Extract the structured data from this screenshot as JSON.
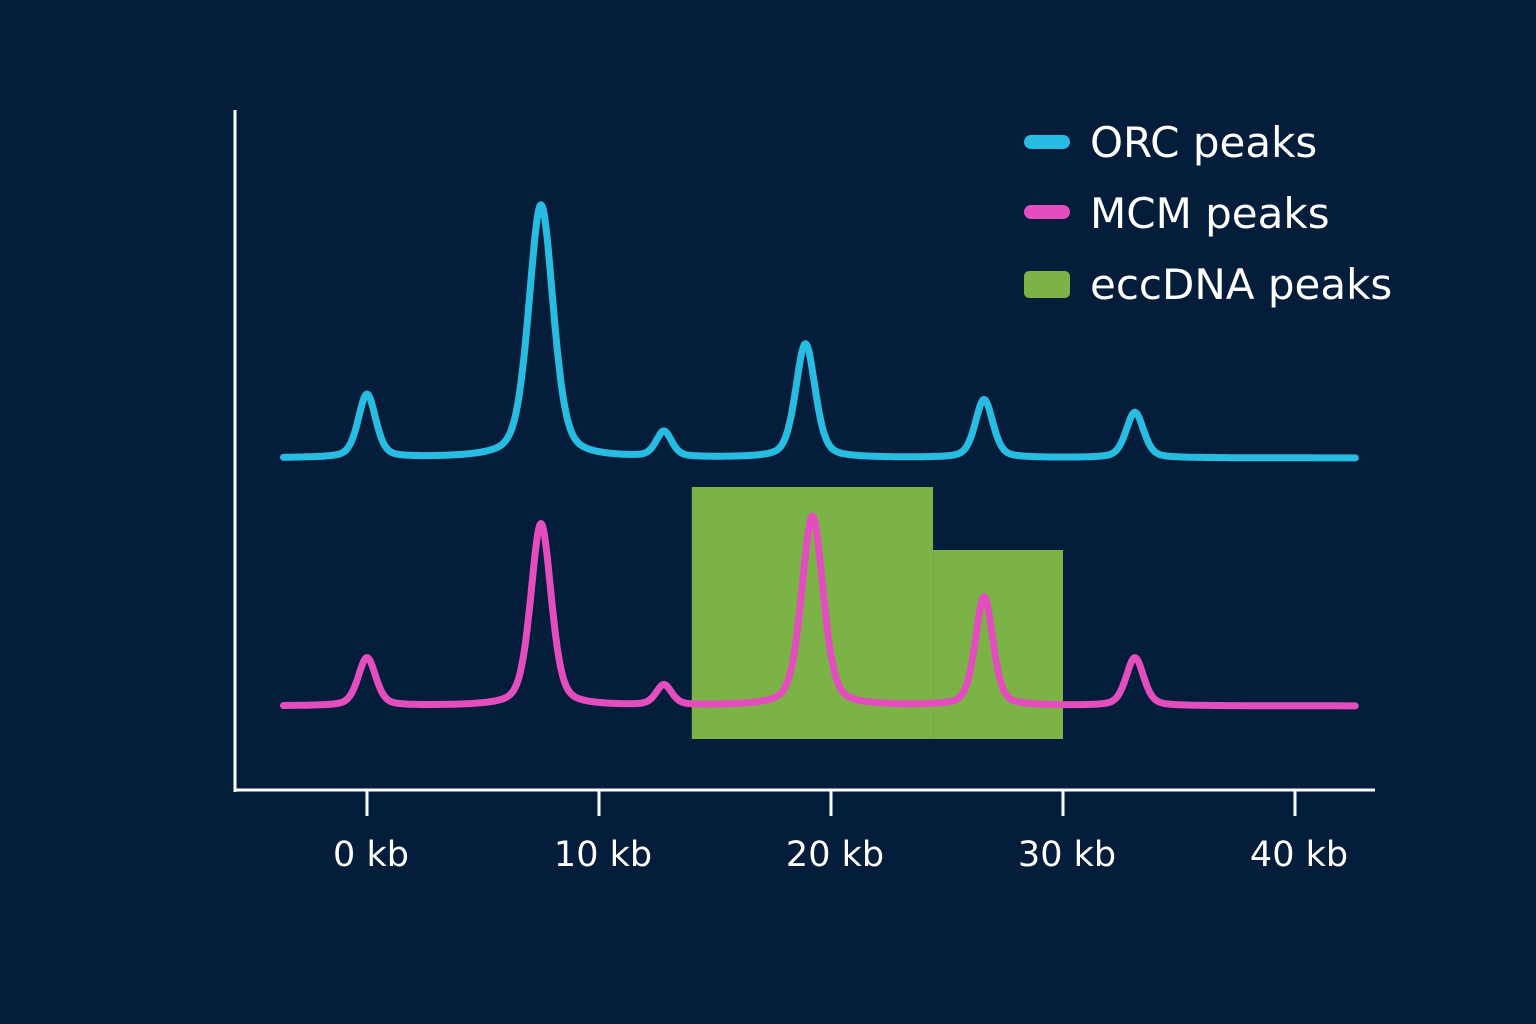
{
  "colors": {
    "background": "#031d3b",
    "axis": "#ffffff",
    "orc": "#27bde2",
    "mcm": "#e44dbd",
    "eccdna": "#7cb347"
  },
  "chart_data": {
    "type": "line",
    "title": "",
    "xlabel": "",
    "ylabel": "",
    "xlim": [
      -5.7,
      43.9
    ],
    "x_ticks": [
      0,
      10,
      20,
      30,
      40
    ],
    "x_tick_labels": [
      "0 kb",
      "10 kb",
      "20 kb",
      "30 kb",
      "40 kb"
    ],
    "x_range_kb": [
      -3.6,
      42.6
    ],
    "y_units": "relative signal (no scale shown)",
    "grid": false,
    "legend_placement": "top-right",
    "legend": [
      {
        "label": "ORC peaks",
        "key": "orc",
        "shape": "line"
      },
      {
        "label": "MCM peaks",
        "key": "mcm",
        "shape": "line"
      },
      {
        "label": "eccDNA peaks",
        "key": "eccdna",
        "shape": "box"
      }
    ],
    "series": [
      {
        "key": "orc",
        "peaks": [
          {
            "position_kb": 0.0,
            "height": 0.25,
            "width_kb": 0.9
          },
          {
            "position_kb": 7.5,
            "height": 1.0,
            "width_kb": 1.25
          },
          {
            "position_kb": 12.8,
            "height": 0.1,
            "width_kb": 0.8
          },
          {
            "position_kb": 18.9,
            "height": 0.45,
            "width_kb": 1.0
          },
          {
            "position_kb": 26.6,
            "height": 0.23,
            "width_kb": 0.9
          },
          {
            "position_kb": 33.1,
            "height": 0.18,
            "width_kb": 0.9
          }
        ]
      },
      {
        "key": "mcm",
        "peaks": [
          {
            "position_kb": 0.0,
            "height": 0.19,
            "width_kb": 0.9
          },
          {
            "position_kb": 7.5,
            "height": 0.72,
            "width_kb": 1.05
          },
          {
            "position_kb": 12.8,
            "height": 0.08,
            "width_kb": 0.8
          },
          {
            "position_kb": 19.2,
            "height": 0.75,
            "width_kb": 1.1
          },
          {
            "position_kb": 26.6,
            "height": 0.43,
            "width_kb": 0.9
          },
          {
            "position_kb": 33.1,
            "height": 0.19,
            "width_kb": 0.9
          }
        ]
      }
    ],
    "regions": [
      {
        "key": "eccdna",
        "start_kb": 14.0,
        "end_kb": 24.4,
        "level": 1.0
      },
      {
        "key": "eccdna",
        "start_kb": 24.4,
        "end_kb": 30.0,
        "level": 0.75
      }
    ]
  }
}
